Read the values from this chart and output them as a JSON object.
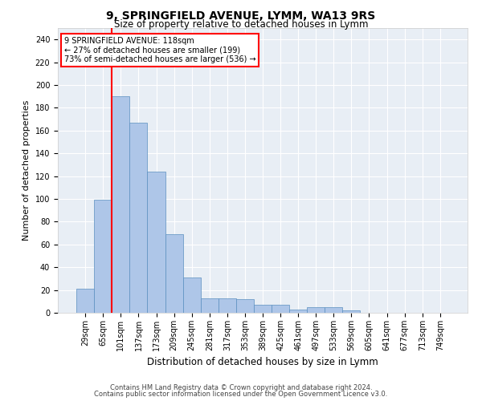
{
  "title1": "9, SPRINGFIELD AVENUE, LYMM, WA13 9RS",
  "title2": "Size of property relative to detached houses in Lymm",
  "xlabel": "Distribution of detached houses by size in Lymm",
  "ylabel": "Number of detached properties",
  "footer1": "Contains HM Land Registry data © Crown copyright and database right 2024.",
  "footer2": "Contains public sector information licensed under the Open Government Licence v3.0.",
  "annotation_line1": "9 SPRINGFIELD AVENUE: 118sqm",
  "annotation_line2": "← 27% of detached houses are smaller (199)",
  "annotation_line3": "73% of semi-detached houses are larger (536) →",
  "bar_values": [
    21,
    99,
    190,
    167,
    124,
    69,
    31,
    13,
    13,
    12,
    7,
    7,
    3,
    5,
    5,
    2,
    0,
    0,
    0,
    0,
    0
  ],
  "categories": [
    "29sqm",
    "65sqm",
    "101sqm",
    "137sqm",
    "173sqm",
    "209sqm",
    "245sqm",
    "281sqm",
    "317sqm",
    "353sqm",
    "389sqm",
    "425sqm",
    "461sqm",
    "497sqm",
    "533sqm",
    "569sqm",
    "605sqm",
    "641sqm",
    "677sqm",
    "713sqm",
    "749sqm"
  ],
  "bar_color": "#aec6e8",
  "bar_edge_color": "#5a8fc0",
  "vline_color": "red",
  "vline_x": 1.5,
  "ylim": [
    0,
    250
  ],
  "yticks": [
    0,
    20,
    40,
    60,
    80,
    100,
    120,
    140,
    160,
    180,
    200,
    220,
    240
  ],
  "bg_color": "#e8eef5",
  "grid_color": "#ffffff",
  "title1_fontsize": 10,
  "title2_fontsize": 8.5,
  "xlabel_fontsize": 8.5,
  "ylabel_fontsize": 8,
  "tick_fontsize": 7,
  "footer_fontsize": 6,
  "annot_fontsize": 7
}
